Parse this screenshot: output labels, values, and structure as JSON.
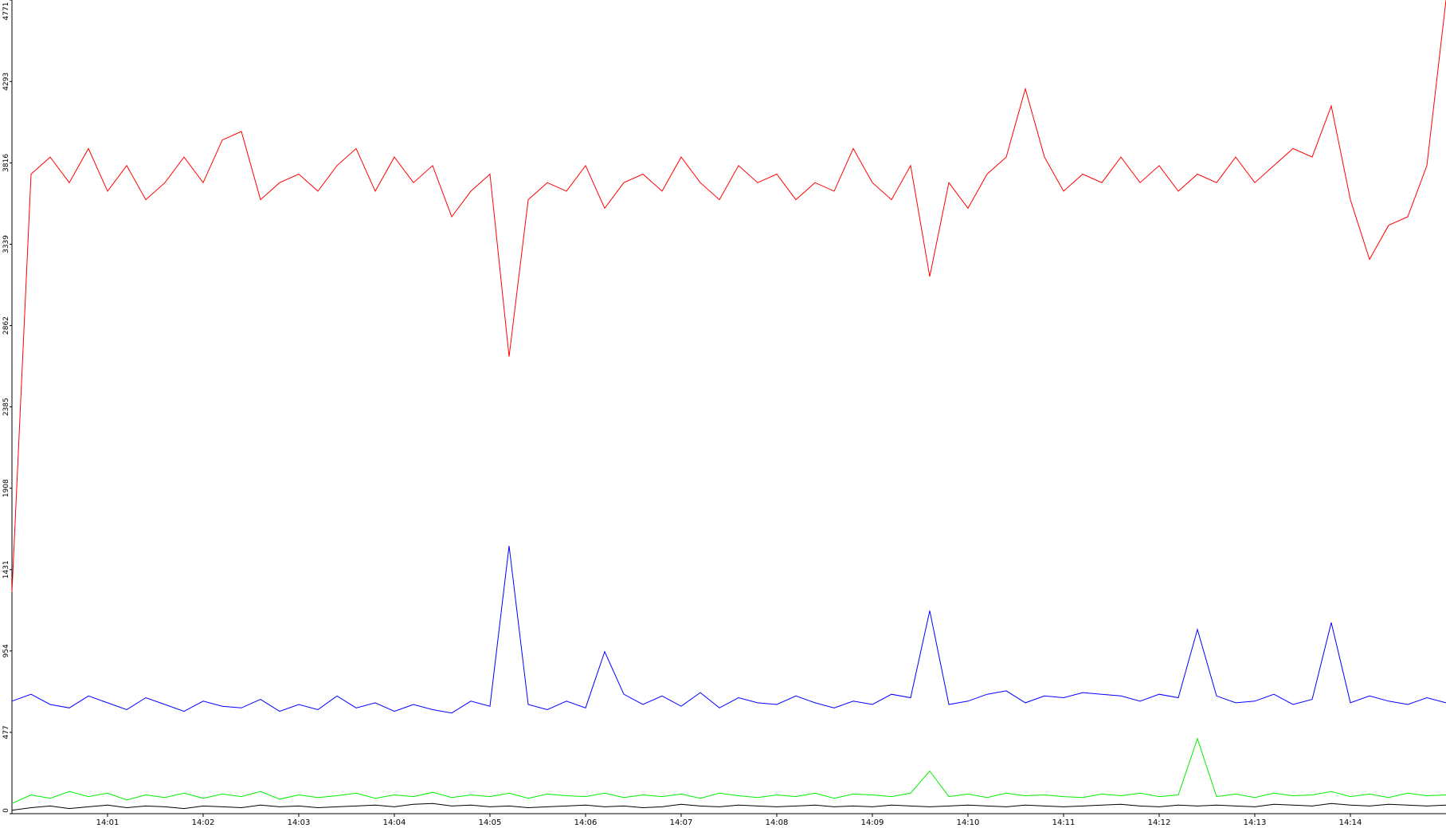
{
  "chart_data": {
    "type": "line",
    "x": [
      0,
      0.2,
      0.4,
      0.6,
      0.8,
      1,
      1.2,
      1.4,
      1.6,
      1.8,
      2,
      2.2,
      2.4,
      2.6,
      2.8,
      3,
      3.2,
      3.4,
      3.6,
      3.8,
      4,
      4.2,
      4.4,
      4.6,
      4.8,
      5,
      5.2,
      5.4,
      5.6,
      5.8,
      6,
      6.2,
      6.4,
      6.6,
      6.8,
      7,
      7.2,
      7.4,
      7.6,
      7.8,
      8,
      8.2,
      8.4,
      8.6,
      8.8,
      9,
      9.2,
      9.4,
      9.6,
      9.8,
      10,
      10.2,
      10.4,
      10.6,
      10.8,
      11,
      11.2,
      11.4,
      11.6,
      11.8,
      12,
      12.2,
      12.4,
      12.6,
      12.8,
      13,
      13.2,
      13.4,
      13.6,
      13.8,
      14,
      14.2,
      14.4,
      14.6,
      14.8,
      15
    ],
    "series": [
      {
        "color": "#ff0000",
        "values": [
          1300,
          3750,
          3850,
          3700,
          3900,
          3650,
          3800,
          3600,
          3700,
          3850,
          3700,
          3950,
          4000,
          3600,
          3700,
          3750,
          3650,
          3800,
          3900,
          3650,
          3850,
          3700,
          3800,
          3500,
          3650,
          3750,
          2680,
          3600,
          3700,
          3650,
          3800,
          3550,
          3700,
          3750,
          3650,
          3850,
          3700,
          3600,
          3800,
          3700,
          3750,
          3600,
          3700,
          3650,
          3900,
          3700,
          3600,
          3800,
          3150,
          3700,
          3550,
          3750,
          3850,
          4250,
          3850,
          3650,
          3750,
          3700,
          3850,
          3700,
          3800,
          3650,
          3750,
          3700,
          3850,
          3700,
          3800,
          3900,
          3850,
          4150,
          3600,
          3250,
          3450,
          3500,
          3800,
          4771
        ]
      },
      {
        "color": "#0000ff",
        "values": [
          660,
          700,
          640,
          620,
          690,
          650,
          610,
          680,
          640,
          600,
          660,
          630,
          620,
          670,
          600,
          640,
          610,
          690,
          620,
          650,
          600,
          640,
          610,
          590,
          660,
          630,
          1570,
          640,
          610,
          660,
          620,
          950,
          700,
          640,
          690,
          630,
          710,
          620,
          680,
          650,
          640,
          690,
          650,
          620,
          660,
          640,
          700,
          680,
          1190,
          640,
          660,
          700,
          720,
          650,
          690,
          680,
          710,
          700,
          690,
          660,
          700,
          680,
          1080,
          690,
          650,
          660,
          700,
          640,
          670,
          1120,
          650,
          690,
          660,
          640,
          680,
          650
        ]
      },
      {
        "color": "#00ee00",
        "values": [
          60,
          110,
          90,
          130,
          100,
          120,
          80,
          110,
          95,
          120,
          90,
          115,
          100,
          130,
          85,
          110,
          95,
          105,
          120,
          90,
          110,
          100,
          125,
          95,
          110,
          100,
          120,
          90,
          115,
          105,
          100,
          120,
          95,
          110,
          100,
          115,
          90,
          120,
          105,
          95,
          110,
          100,
          120,
          90,
          115,
          110,
          100,
          120,
          250,
          100,
          115,
          95,
          120,
          105,
          110,
          100,
          95,
          115,
          105,
          120,
          100,
          110,
          440,
          100,
          115,
          95,
          120,
          105,
          110,
          130,
          100,
          115,
          95,
          120,
          105,
          110
        ]
      },
      {
        "color": "#000000",
        "values": [
          20,
          35,
          45,
          30,
          40,
          50,
          35,
          45,
          40,
          30,
          45,
          40,
          35,
          50,
          40,
          45,
          35,
          40,
          45,
          50,
          40,
          55,
          60,
          45,
          50,
          40,
          45,
          35,
          40,
          45,
          50,
          40,
          45,
          35,
          40,
          55,
          45,
          40,
          50,
          45,
          40,
          45,
          50,
          40,
          45,
          40,
          50,
          45,
          40,
          45,
          50,
          45,
          40,
          50,
          45,
          40,
          45,
          50,
          55,
          45,
          40,
          50,
          45,
          50,
          45,
          40,
          55,
          50,
          45,
          60,
          50,
          45,
          55,
          50,
          45,
          50
        ]
      }
    ],
    "xlim": [
      0,
      15
    ],
    "xticks": [
      {
        "value": 1,
        "label": "14:01"
      },
      {
        "value": 2,
        "label": "14:02"
      },
      {
        "value": 3,
        "label": "14:03"
      },
      {
        "value": 4,
        "label": "14:04"
      },
      {
        "value": 5,
        "label": "14:05"
      },
      {
        "value": 6,
        "label": "14:06"
      },
      {
        "value": 7,
        "label": "14:07"
      },
      {
        "value": 8,
        "label": "14:08"
      },
      {
        "value": 9,
        "label": "14:09"
      },
      {
        "value": 10,
        "label": "14:10"
      },
      {
        "value": 11,
        "label": "14:11"
      },
      {
        "value": 12,
        "label": "14:12"
      },
      {
        "value": 13,
        "label": "14:13"
      },
      {
        "value": 14,
        "label": "14:14"
      }
    ],
    "ylim": [
      0,
      4771
    ],
    "yticks": [
      0,
      477,
      954,
      1431,
      1908,
      2385,
      2862,
      3339,
      3816,
      4293,
      4771
    ]
  }
}
